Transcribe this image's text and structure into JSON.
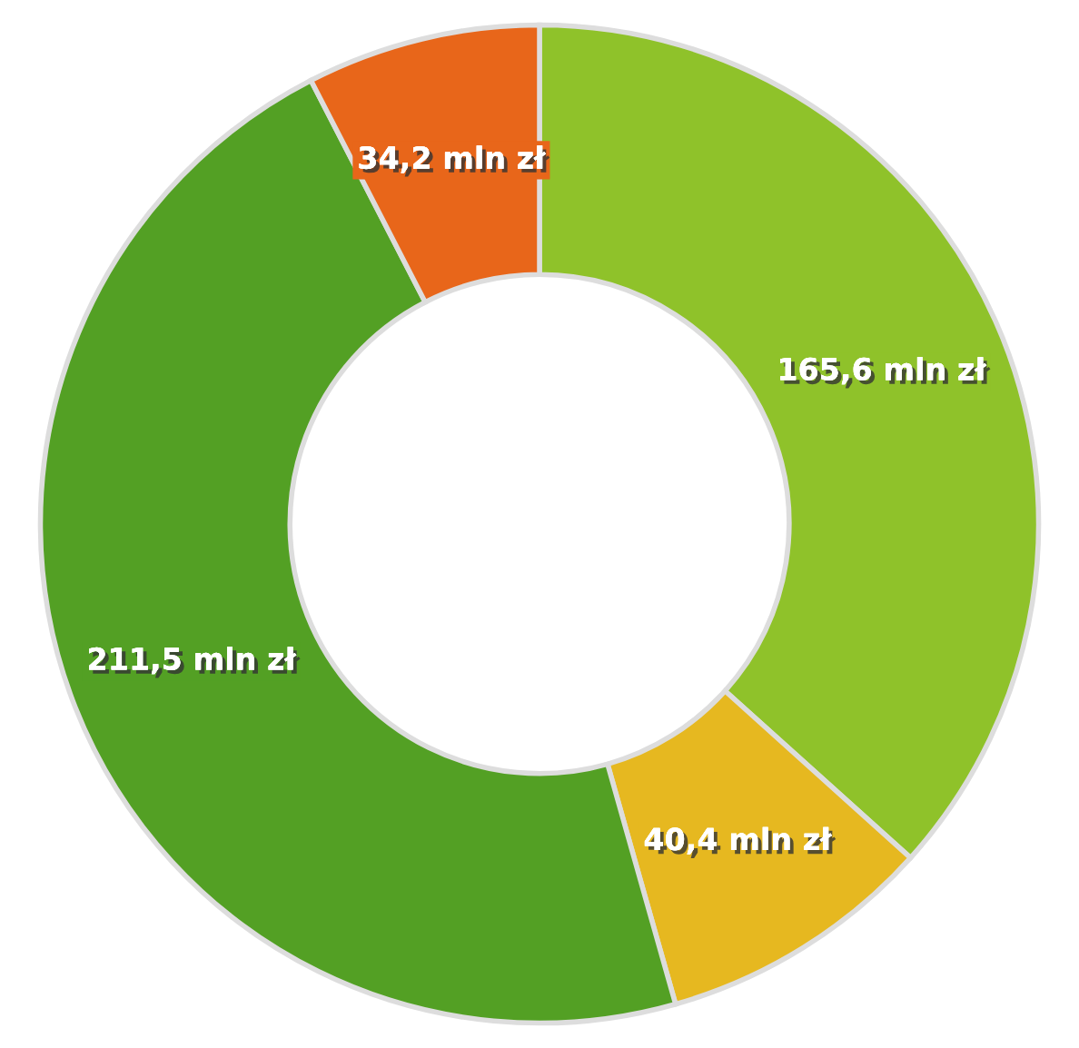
{
  "chart_data": {
    "type": "donut",
    "categories": [
      null,
      null,
      null,
      null
    ],
    "values": [
      165.6,
      40.4,
      211.5,
      34.2
    ],
    "colors": [
      "#8fc22a",
      "#e6b820",
      "#53a024",
      "#e8661a"
    ],
    "value_labels": [
      "165,6 mln zł",
      "40,4 mln zł",
      "211,5 mln zł",
      "34,2 mln zł"
    ],
    "legend": false
  }
}
